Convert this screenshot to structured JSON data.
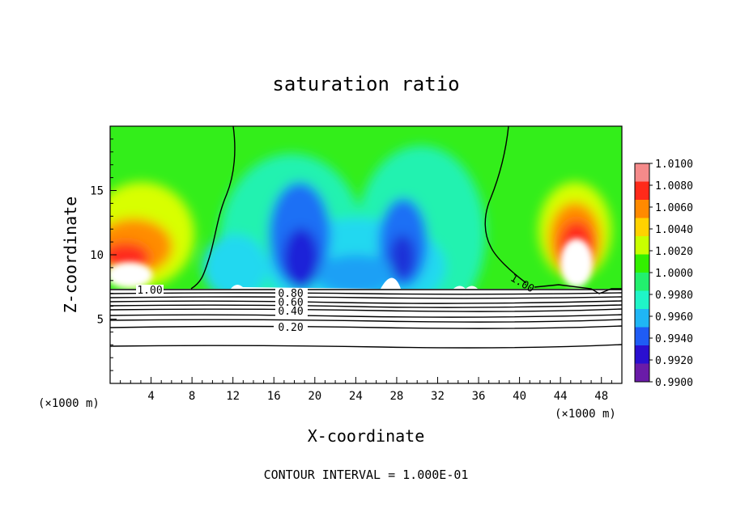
{
  "chart_data": {
    "type": "heatmap",
    "title": "saturation ratio",
    "xlabel": "X-coordinate",
    "ylabel": "Z-coordinate",
    "x_unit_left": "(×1000 m)",
    "x_unit_right": "(×1000 m)",
    "xlim": [
      0,
      50
    ],
    "ylim": [
      0,
      20
    ],
    "x_ticks": [
      "4",
      "8",
      "12",
      "16",
      "20",
      "24",
      "28",
      "32",
      "36",
      "40",
      "44",
      "48"
    ],
    "y_ticks": [
      "5",
      "10",
      "15"
    ],
    "colorbar": {
      "labels": [
        "0.9900",
        "0.9920",
        "0.9940",
        "0.9960",
        "0.9980",
        "1.0000",
        "1.0020",
        "1.0040",
        "1.0060",
        "1.0080",
        "1.0100"
      ],
      "min": 0.99,
      "max": 1.01,
      "colors": [
        "#6a1ba8",
        "#2a0fd0",
        "#1f5cf5",
        "#1fb6f5",
        "#1ff5c8",
        "#22f06e",
        "#33f000",
        "#c9ff00",
        "#ffd200",
        "#ff8a00",
        "#ff2a1a",
        "#f58a8a"
      ]
    },
    "contour_labels": [
      "1.00",
      "0.80",
      "0.60",
      "0.40",
      "0.20",
      "1.00"
    ],
    "footer": "CONTOUR INTERVAL = 1.000E-01"
  }
}
